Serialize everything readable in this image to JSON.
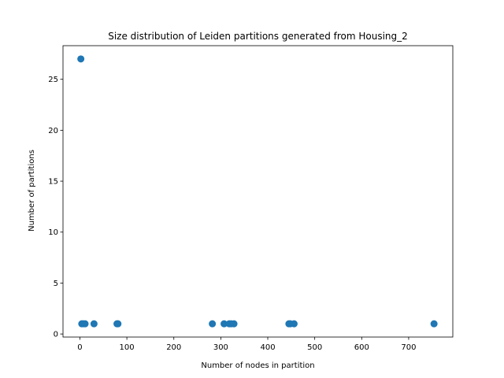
{
  "chart_data": {
    "type": "scatter",
    "title": "Size distribution of Leiden partitions generated from Housing_2",
    "xlabel": "Number of nodes in partition",
    "ylabel": "Number of partitions",
    "xlim": [
      -36,
      794
    ],
    "ylim": [
      -0.3,
      28.3
    ],
    "xticks": [
      0,
      100,
      200,
      300,
      400,
      500,
      600,
      700
    ],
    "yticks": [
      0,
      5,
      10,
      15,
      20,
      25
    ],
    "grid": false,
    "marker_color": "#1f77b4",
    "points": [
      {
        "x": 2,
        "y": 27
      },
      {
        "x": 4,
        "y": 1
      },
      {
        "x": 7,
        "y": 1
      },
      {
        "x": 11,
        "y": 1
      },
      {
        "x": 30,
        "y": 1
      },
      {
        "x": 79,
        "y": 1
      },
      {
        "x": 81,
        "y": 1
      },
      {
        "x": 282,
        "y": 1
      },
      {
        "x": 307,
        "y": 1
      },
      {
        "x": 318,
        "y": 1
      },
      {
        "x": 322,
        "y": 1
      },
      {
        "x": 328,
        "y": 1
      },
      {
        "x": 445,
        "y": 1
      },
      {
        "x": 448,
        "y": 1
      },
      {
        "x": 456,
        "y": 1
      },
      {
        "x": 754,
        "y": 1
      }
    ]
  }
}
